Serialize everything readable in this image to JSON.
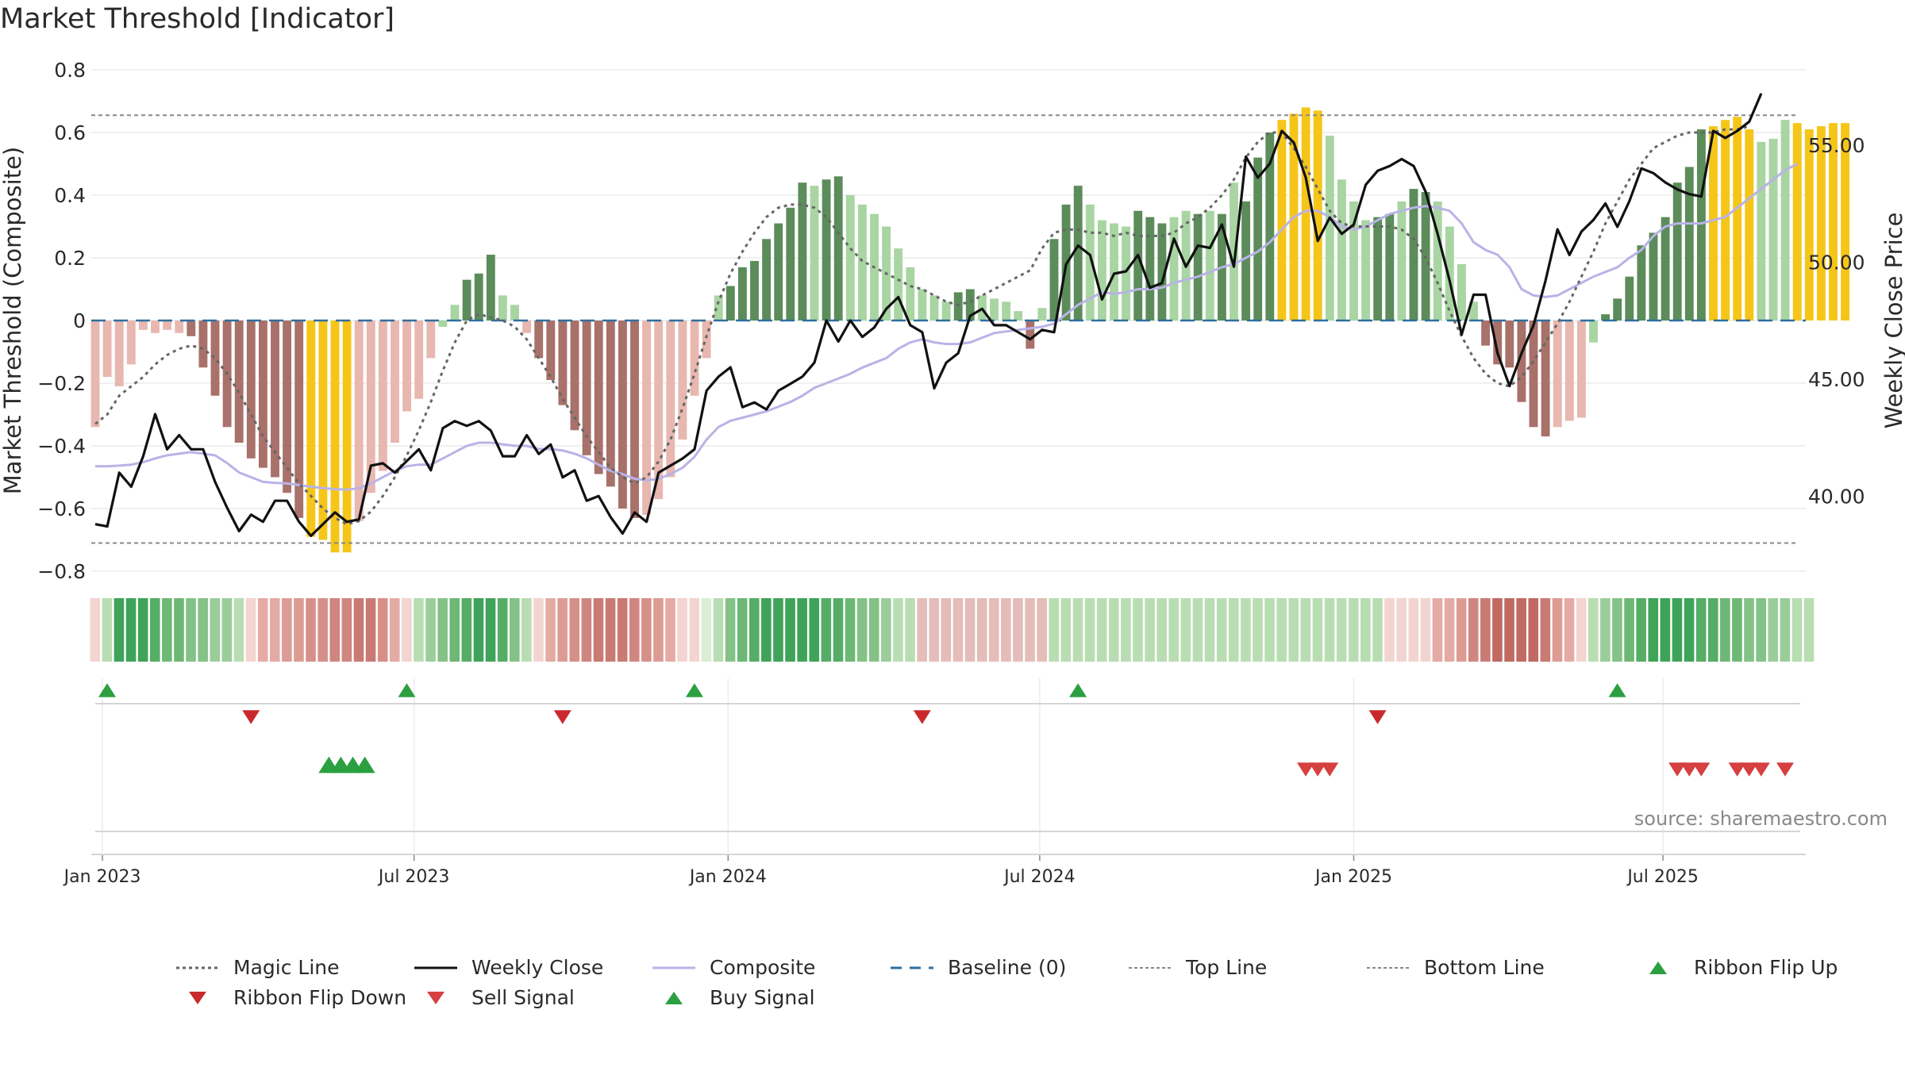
{
  "title": "Market Threshold [Indicator]",
  "source": "source: sharemaestro.com",
  "chart_data": {
    "type": "bar",
    "title": "Market Threshold [Indicator]",
    "ylabel_left": "Market Threshold (Composite)",
    "ylabel_right": "Weekly Close Price",
    "ylim_left": [
      -0.8,
      0.8
    ],
    "ylim_right": [
      36.7,
      58.3
    ],
    "left_ticks": [
      "0.8",
      "0.6",
      "0.4",
      "0.2",
      "0",
      "−0.2",
      "−0.4",
      "−0.6",
      "−0.8"
    ],
    "left_tick_values": [
      0.8,
      0.6,
      0.4,
      0.2,
      0,
      -0.2,
      -0.4,
      -0.6,
      -0.8
    ],
    "right_ticks": [
      "55.00",
      "50.00",
      "45.00",
      "40.00"
    ],
    "right_tick_values": [
      55,
      50,
      45,
      40
    ],
    "x_ticks": [
      "Jan 2023",
      "Jul 2023",
      "Jan 2024",
      "Jul 2024",
      "Jan 2025",
      "Jul 2025"
    ],
    "x_tick_weeks": [
      0.6,
      26.6,
      52.8,
      78.8,
      105,
      130.8
    ],
    "top_line": 0.655,
    "bottom_line": -0.71,
    "baseline": 0,
    "grid": true,
    "legend_position": "bottom",
    "colors": {
      "dark_green": "#5b8c5a",
      "light_green": "#a8d5a2",
      "dark_red": "#a8716a",
      "light_red": "#e8b7b0",
      "gold": "#f5c518",
      "weekly_close": "#111111",
      "composite": "#b9b3e6",
      "magic_line": "#666666",
      "baseline": "#2f6f9f",
      "threshold_lines": "#888888",
      "flip_up": "#2ca041",
      "flip_down": "#c9292c",
      "sell": "#d64040",
      "buy": "#2ca041"
    },
    "composite_bars": [
      -0.34,
      -0.18,
      -0.21,
      -0.14,
      -0.03,
      -0.04,
      -0.03,
      -0.04,
      -0.05,
      -0.15,
      -0.24,
      -0.34,
      -0.39,
      -0.44,
      -0.47,
      -0.5,
      -0.55,
      -0.63,
      -0.69,
      -0.7,
      -0.74,
      -0.74,
      -0.64,
      -0.55,
      -0.48,
      -0.39,
      -0.29,
      -0.25,
      -0.12,
      -0.02,
      0.05,
      0.13,
      0.15,
      0.21,
      0.08,
      0.05,
      -0.04,
      -0.12,
      -0.19,
      -0.27,
      -0.35,
      -0.43,
      -0.49,
      -0.53,
      -0.6,
      -0.63,
      -0.62,
      -0.57,
      -0.5,
      -0.38,
      -0.24,
      -0.12,
      0.08,
      0.11,
      0.17,
      0.19,
      0.26,
      0.31,
      0.36,
      0.44,
      0.43,
      0.45,
      0.46,
      0.4,
      0.37,
      0.34,
      0.3,
      0.23,
      0.17,
      0.1,
      0.08,
      0.06,
      0.09,
      0.1,
      0.08,
      0.07,
      0.06,
      0.03,
      -0.09,
      0.04,
      0.26,
      0.37,
      0.43,
      0.37,
      0.32,
      0.31,
      0.3,
      0.35,
      0.33,
      0.31,
      0.33,
      0.35,
      0.34,
      0.35,
      0.34,
      0.44,
      0.38,
      0.52,
      0.6,
      0.64,
      0.66,
      0.68,
      0.67,
      0.59,
      0.45,
      0.38,
      0.32,
      0.33,
      0.34,
      0.38,
      0.42,
      0.41,
      0.38,
      0.3,
      0.18,
      0.06,
      -0.08,
      -0.14,
      -0.15,
      -0.26,
      -0.34,
      -0.37,
      -0.34,
      -0.32,
      -0.31,
      -0.07,
      0.02,
      0.07,
      0.14,
      0.24,
      0.28,
      0.33,
      0.44,
      0.49,
      0.61,
      0.62,
      0.64,
      0.65,
      0.61,
      0.57,
      0.58,
      0.64,
      0.63,
      0.61,
      0.62,
      0.63,
      0.63
    ],
    "bar_colors": [
      "light_red",
      "light_red",
      "light_red",
      "light_red",
      "light_red",
      "light_red",
      "light_red",
      "light_red",
      "dark_red",
      "dark_red",
      "dark_red",
      "dark_red",
      "dark_red",
      "dark_red",
      "dark_red",
      "dark_red",
      "dark_red",
      "dark_red",
      "gold",
      "gold",
      "gold",
      "gold",
      "light_red",
      "light_red",
      "light_red",
      "light_red",
      "light_red",
      "light_red",
      "light_red",
      "light_green",
      "light_green",
      "dark_green",
      "dark_green",
      "dark_green",
      "light_green",
      "light_green",
      "light_red",
      "dark_red",
      "dark_red",
      "dark_red",
      "dark_red",
      "dark_red",
      "dark_red",
      "dark_red",
      "dark_red",
      "dark_red",
      "light_red",
      "light_red",
      "light_red",
      "light_red",
      "light_red",
      "light_red",
      "light_green",
      "dark_green",
      "dark_green",
      "dark_green",
      "dark_green",
      "dark_green",
      "dark_green",
      "dark_green",
      "light_green",
      "dark_green",
      "dark_green",
      "light_green",
      "light_green",
      "light_green",
      "light_green",
      "light_green",
      "light_green",
      "light_green",
      "light_green",
      "light_green",
      "dark_green",
      "dark_green",
      "light_green",
      "light_green",
      "light_green",
      "light_green",
      "dark_red",
      "light_green",
      "dark_green",
      "dark_green",
      "dark_green",
      "light_green",
      "light_green",
      "light_green",
      "light_green",
      "dark_green",
      "dark_green",
      "dark_green",
      "light_green",
      "light_green",
      "dark_green",
      "light_green",
      "dark_green",
      "light_green",
      "dark_green",
      "dark_green",
      "dark_green",
      "gold",
      "gold",
      "gold",
      "gold",
      "light_green",
      "light_green",
      "light_green",
      "light_green",
      "dark_green",
      "dark_green",
      "light_green",
      "dark_green",
      "dark_green",
      "light_green",
      "light_green",
      "light_green",
      "light_green",
      "dark_red",
      "dark_red",
      "dark_red",
      "dark_red",
      "dark_red",
      "dark_red",
      "light_red",
      "light_red",
      "light_red",
      "light_green",
      "dark_green",
      "dark_green",
      "dark_green",
      "dark_green",
      "dark_green",
      "dark_green",
      "dark_green",
      "dark_green",
      "dark_green",
      "gold",
      "gold",
      "gold",
      "gold",
      "light_green",
      "light_green",
      "light_green",
      "gold",
      "gold",
      "gold",
      "gold",
      "gold",
      "light_green",
      "gold"
    ],
    "weekly_close": [
      38.8,
      38.7,
      41.0,
      40.4,
      41.7,
      43.5,
      42.0,
      42.6,
      42.0,
      42.0,
      40.6,
      39.5,
      38.5,
      39.2,
      38.9,
      39.8,
      39.8,
      38.9,
      38.3,
      38.8,
      39.3,
      38.9,
      39.0,
      41.3,
      41.4,
      41.0,
      41.5,
      42.0,
      41.1,
      42.9,
      43.2,
      43.0,
      43.2,
      42.8,
      41.7,
      41.7,
      42.6,
      41.8,
      42.2,
      40.8,
      41.1,
      39.8,
      40.0,
      39.1,
      38.4,
      39.3,
      38.9,
      41.0,
      41.3,
      41.6,
      42.0,
      44.5,
      45.1,
      45.5,
      43.8,
      44.0,
      43.7,
      44.5,
      44.8,
      45.1,
      45.7,
      47.5,
      46.6,
      47.5,
      46.8,
      47.2,
      48.0,
      48.5,
      47.3,
      47.0,
      44.6,
      45.7,
      46.1,
      47.7,
      48.0,
      47.3,
      47.3,
      47.0,
      46.7,
      47.1,
      47.0,
      49.9,
      50.7,
      50.3,
      48.4,
      49.5,
      49.6,
      50.3,
      48.9,
      49.1,
      51.0,
      49.8,
      50.7,
      50.6,
      51.6,
      49.8,
      54.5,
      53.6,
      54.2,
      55.6,
      55.1,
      53.6,
      50.9,
      51.9,
      51.2,
      51.6,
      53.3,
      53.9,
      54.1,
      54.4,
      54.1,
      53.0,
      51.2,
      49.2,
      46.9,
      48.6,
      48.6,
      46.1,
      44.7,
      46.1,
      47.3,
      49.2,
      51.4,
      50.3,
      51.3,
      51.8,
      52.5,
      51.5,
      52.6,
      54.0,
      53.8,
      53.4,
      53.1,
      52.9,
      52.8,
      55.6,
      55.3,
      55.6,
      56.0,
      57.2
    ],
    "composite_line": [
      -0.465,
      -0.465,
      -0.463,
      -0.46,
      -0.452,
      -0.44,
      -0.43,
      -0.425,
      -0.42,
      -0.425,
      -0.43,
      -0.455,
      -0.485,
      -0.5,
      -0.515,
      -0.518,
      -0.52,
      -0.525,
      -0.53,
      -0.535,
      -0.538,
      -0.54,
      -0.535,
      -0.52,
      -0.5,
      -0.48,
      -0.465,
      -0.46,
      -0.46,
      -0.44,
      -0.42,
      -0.4,
      -0.39,
      -0.39,
      -0.395,
      -0.4,
      -0.4,
      -0.41,
      -0.41,
      -0.415,
      -0.425,
      -0.44,
      -0.46,
      -0.48,
      -0.49,
      -0.505,
      -0.51,
      -0.505,
      -0.49,
      -0.47,
      -0.435,
      -0.38,
      -0.34,
      -0.32,
      -0.31,
      -0.3,
      -0.29,
      -0.275,
      -0.26,
      -0.24,
      -0.215,
      -0.2,
      -0.185,
      -0.17,
      -0.15,
      -0.135,
      -0.12,
      -0.09,
      -0.07,
      -0.06,
      -0.07,
      -0.075,
      -0.075,
      -0.07,
      -0.055,
      -0.04,
      -0.035,
      -0.03,
      -0.025,
      -0.02,
      -0.01,
      0.02,
      0.05,
      0.07,
      0.09,
      0.085,
      0.09,
      0.1,
      0.1,
      0.105,
      0.12,
      0.13,
      0.14,
      0.155,
      0.17,
      0.18,
      0.2,
      0.22,
      0.25,
      0.29,
      0.33,
      0.35,
      0.35,
      0.33,
      0.3,
      0.29,
      0.3,
      0.32,
      0.34,
      0.35,
      0.36,
      0.365,
      0.36,
      0.35,
      0.31,
      0.25,
      0.225,
      0.21,
      0.17,
      0.1,
      0.08,
      0.075,
      0.08,
      0.1,
      0.12,
      0.14,
      0.155,
      0.17,
      0.2,
      0.225,
      0.27,
      0.3,
      0.31,
      0.31,
      0.31,
      0.32,
      0.33,
      0.36,
      0.39,
      0.42,
      0.45,
      0.48,
      0.5
    ],
    "magic_line": [
      -0.33,
      -0.3,
      -0.24,
      -0.21,
      -0.18,
      -0.14,
      -0.11,
      -0.09,
      -0.08,
      -0.09,
      -0.12,
      -0.17,
      -0.23,
      -0.3,
      -0.37,
      -0.42,
      -0.47,
      -0.52,
      -0.56,
      -0.6,
      -0.63,
      -0.65,
      -0.64,
      -0.61,
      -0.56,
      -0.5,
      -0.43,
      -0.35,
      -0.26,
      -0.16,
      -0.07,
      0.0,
      0.02,
      0.01,
      0.0,
      -0.02,
      -0.06,
      -0.12,
      -0.18,
      -0.25,
      -0.31,
      -0.37,
      -0.42,
      -0.47,
      -0.5,
      -0.52,
      -0.5,
      -0.45,
      -0.38,
      -0.28,
      -0.17,
      -0.05,
      0.06,
      0.15,
      0.22,
      0.28,
      0.33,
      0.36,
      0.37,
      0.37,
      0.36,
      0.33,
      0.28,
      0.23,
      0.19,
      0.17,
      0.15,
      0.13,
      0.11,
      0.1,
      0.08,
      0.06,
      0.05,
      0.06,
      0.08,
      0.1,
      0.12,
      0.14,
      0.16,
      0.23,
      0.28,
      0.29,
      0.29,
      0.28,
      0.28,
      0.27,
      0.28,
      0.27,
      0.27,
      0.27,
      0.28,
      0.31,
      0.33,
      0.36,
      0.4,
      0.45,
      0.52,
      0.57,
      0.6,
      0.6,
      0.55,
      0.49,
      0.42,
      0.35,
      0.31,
      0.3,
      0.3,
      0.3,
      0.3,
      0.29,
      0.26,
      0.2,
      0.12,
      0.03,
      -0.05,
      -0.12,
      -0.17,
      -0.2,
      -0.21,
      -0.18,
      -0.13,
      -0.07,
      -0.01,
      0.06,
      0.14,
      0.22,
      0.31,
      0.38,
      0.45,
      0.5,
      0.55,
      0.57,
      0.59,
      0.6,
      0.6,
      0.6,
      0.61,
      0.61,
      0.62
    ],
    "ribbon_colors": [
      "#f2d4d0",
      "#b9ddb2",
      "#3fa35a",
      "#3fa35a",
      "#3fa35a",
      "#56ad66",
      "#6db874",
      "#6db874",
      "#84c287",
      "#84c287",
      "#9bcd9a",
      "#9bcd9a",
      "#b9ddb2",
      "#f2d4d0",
      "#e4aba4",
      "#e4aba4",
      "#dc9c94",
      "#dc9c94",
      "#d69088",
      "#d69088",
      "#d08680",
      "#d08680",
      "#c97a73",
      "#c97a73",
      "#d69088",
      "#e4aba4",
      "#f2d4d0",
      "#b9ddb2",
      "#9bcd9a",
      "#84c287",
      "#6db874",
      "#56ad66",
      "#3fa35a",
      "#3fa35a",
      "#56ad66",
      "#84c287",
      "#b9ddb2",
      "#f2d4d0",
      "#e4aba4",
      "#dc9c94",
      "#d69088",
      "#d08680",
      "#c97a73",
      "#c97a73",
      "#c97a73",
      "#d08680",
      "#d69088",
      "#dc9c94",
      "#e4aba4",
      "#f2d4d0",
      "#f2d4d0",
      "#d9eed5",
      "#b9ddb2",
      "#84c287",
      "#6db874",
      "#56ad66",
      "#3fa35a",
      "#3fa35a",
      "#3fa35a",
      "#3fa35a",
      "#3fa35a",
      "#56ad66",
      "#56ad66",
      "#6db874",
      "#84c287",
      "#84c287",
      "#9bcd9a",
      "#b9ddb2",
      "#b9ddb2",
      "#e4bdb8",
      "#e4bdb8",
      "#e4bdb8",
      "#e4bdb8",
      "#e4bdb8",
      "#e4bdb8",
      "#e4bdb8",
      "#e4bdb8",
      "#e4bdb8",
      "#e4bdb8",
      "#e4bdb8",
      "#b9ddb2",
      "#b9ddb2",
      "#b9ddb2",
      "#b9ddb2",
      "#b9ddb2",
      "#b9ddb2",
      "#b9ddb2",
      "#b9ddb2",
      "#b9ddb2",
      "#b9ddb2",
      "#b9ddb2",
      "#b9ddb2",
      "#b9ddb2",
      "#b9ddb2",
      "#b9ddb2",
      "#b9ddb2",
      "#b9ddb2",
      "#b9ddb2",
      "#b9ddb2",
      "#b9ddb2",
      "#b9ddb2",
      "#b9ddb2",
      "#b9ddb2",
      "#b9ddb2",
      "#b9ddb2",
      "#b9ddb2",
      "#b9ddb2",
      "#b9ddb2",
      "#f2d4d0",
      "#f2d4d0",
      "#f2d4d0",
      "#f2d4d0",
      "#e4aba4",
      "#e4aba4",
      "#dc9c94",
      "#d08680",
      "#c97a73",
      "#c06a62",
      "#c06a62",
      "#c06a62",
      "#c06a62",
      "#c97a73",
      "#dc9c94",
      "#e4aba4",
      "#f2d4d0",
      "#b9ddb2",
      "#9bcd9a",
      "#84c287",
      "#6db874",
      "#56ad66",
      "#3fa35a",
      "#3fa35a",
      "#3fa35a",
      "#3fa35a",
      "#56ad66",
      "#56ad66",
      "#6db874",
      "#6db874",
      "#84c287",
      "#84c287",
      "#9bcd9a",
      "#9bcd9a",
      "#b9ddb2",
      "#b9ddb2"
    ],
    "ribbon_flip_up_weeks": [
      0,
      25,
      49,
      81,
      126
    ],
    "ribbon_flip_down_weeks": [
      12,
      38,
      68,
      106
    ],
    "buy_signal_weeks": [
      18.5,
      19.5,
      20.5,
      21.5
    ],
    "sell_signal_weeks": [
      100,
      101,
      102,
      131,
      132,
      133,
      136,
      137,
      138,
      140
    ]
  },
  "legend": [
    {
      "label": "Magic Line",
      "symbol": "dotted",
      "color": "#666666"
    },
    {
      "label": "Weekly Close",
      "symbol": "solid",
      "color": "#111111"
    },
    {
      "label": "Composite",
      "symbol": "solid-light",
      "color": "#b9b3e6"
    },
    {
      "label": "Baseline (0)",
      "symbol": "dashed",
      "color": "#2f6f9f"
    },
    {
      "label": "Top Line",
      "symbol": "dotted-thin",
      "color": "#888888"
    },
    {
      "label": "Bottom Line",
      "symbol": "dotted-thin",
      "color": "#888888"
    },
    {
      "label": "Ribbon Flip Up",
      "symbol": "triangle-up",
      "color": "#2ca041"
    },
    {
      "label": "Ribbon Flip Down",
      "symbol": "triangle-down",
      "color": "#c9292c"
    },
    {
      "label": "Sell Signal",
      "symbol": "triangle-down",
      "color": "#d64040"
    },
    {
      "label": "Buy Signal",
      "symbol": "triangle-up",
      "color": "#2ca041"
    }
  ]
}
